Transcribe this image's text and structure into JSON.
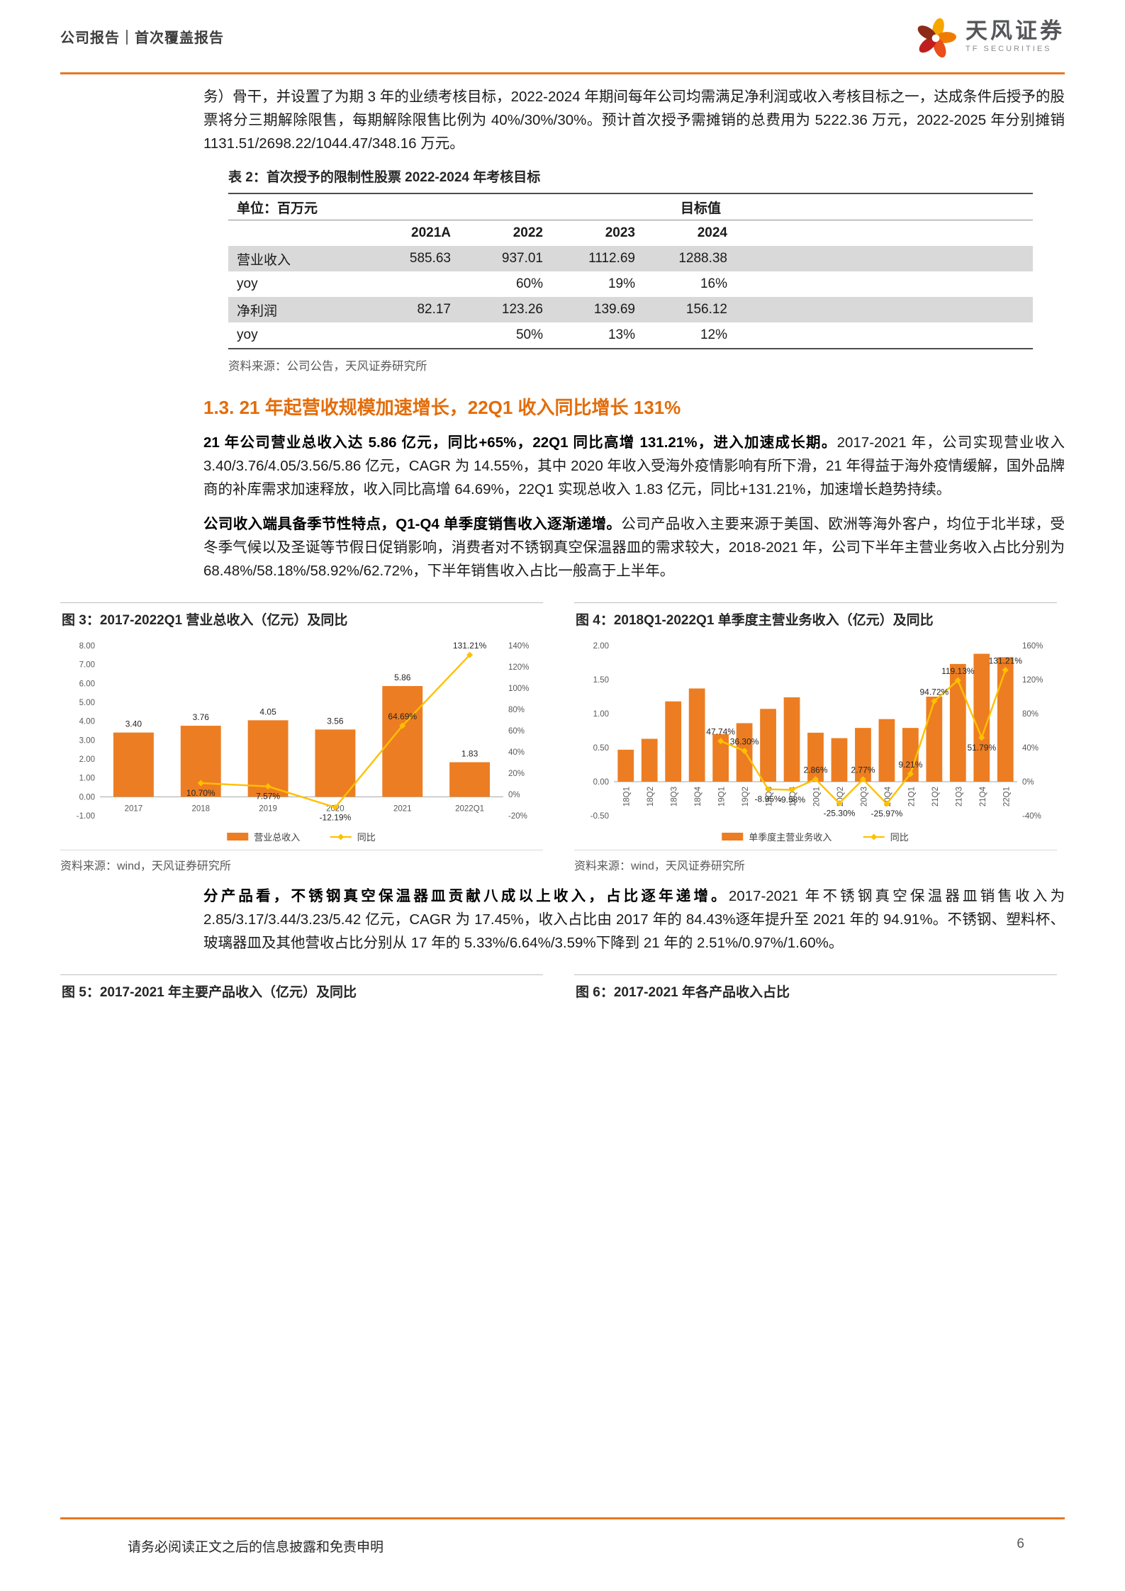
{
  "header": {
    "breadcrumb": "公司报告｜首次覆盖报告",
    "brand_cn": "天风证券",
    "brand_en": "TF SECURITIES"
  },
  "intro": {
    "text": "务）骨干，并设置了为期 3 年的业绩考核目标，2022-2024 年期间每年公司均需满足净利润或收入考核目标之一，达成条件后授予的股票将分三期解除限售，每期解除限售比例为 40%/30%/30%。预计首次授予需摊销的总费用为 5222.36 万元，2022-2025 年分别摊销 1131.51/2698.22/1044.47/348.16 万元。"
  },
  "table2": {
    "title": "表 2：首次授予的限制性股票 2022-2024 年考核目标",
    "unit_label": "单位：百万元",
    "group_header": "目标值",
    "columns": [
      "2021A",
      "2022",
      "2023",
      "2024"
    ],
    "rows": [
      {
        "label": "营业收入",
        "values": [
          "585.63",
          "937.01",
          "1112.69",
          "1288.38"
        ]
      },
      {
        "label": "yoy",
        "values": [
          "",
          "60%",
          "19%",
          "16%"
        ]
      },
      {
        "label": "净利润",
        "values": [
          "82.17",
          "123.26",
          "139.69",
          "156.12"
        ]
      },
      {
        "label": "yoy",
        "values": [
          "",
          "50%",
          "13%",
          "12%"
        ]
      }
    ],
    "source": "资料来源：公司公告，天风证券研究所"
  },
  "section13": {
    "heading": "1.3. 21 年起营收规模加速增长，22Q1 收入同比增长 131%",
    "para1": {
      "lead": "21 年公司营业总收入达 5.86 亿元，同比+65%，22Q1 同比高增 131.21%，进入加速成长期。",
      "body": "2017-2021 年，公司实现营业收入 3.40/3.76/4.05/3.56/5.86 亿元，CAGR 为 14.55%，其中 2020 年收入受海外疫情影响有所下滑，21 年得益于海外疫情缓解，国外品牌商的补库需求加速释放，收入同比高增 64.69%，22Q1 实现总收入 1.83 亿元，同比+131.21%，加速增长趋势持续。"
    },
    "para2": {
      "lead": "公司收入端具备季节性特点，Q1-Q4 单季度销售收入逐渐递增。",
      "body": "公司产品收入主要来源于美国、欧洲等海外客户，均位于北半球，受冬季气候以及圣诞等节假日促销影响，消费者对不锈钢真空保温器皿的需求较大，2018-2021 年，公司下半年主营业务收入占比分别为 68.48%/58.18%/58.92%/62.72%，下半年销售收入占比一般高于上半年。"
    },
    "para3": {
      "lead": "分产品看，不锈钢真空保温器皿贡献八成以上收入，占比逐年递增。",
      "body": "2017-2021 年不锈钢真空保温器皿销售收入为 2.85/3.17/3.44/3.23/5.42 亿元，CAGR 为 17.45%，收入占比由 2017 年的 84.43%逐年提升至 2021 年的 94.91%。不锈钢、塑料杯、玻璃器皿及其他营收占比分别从 17 年的 5.33%/6.64%/3.59%下降到 21 年的 2.51%/0.97%/1.60%。"
    }
  },
  "figures": {
    "fig3": {
      "title": "图 3：2017-2022Q1 营业总收入（亿元）及同比",
      "source": "资料来源：wind，天风证券研究所"
    },
    "fig4": {
      "title": "图 4：2018Q1-2022Q1 单季度主营业务收入（亿元）及同比",
      "source": "资料来源：wind，天风证券研究所"
    },
    "fig5": {
      "title": "图 5：2017-2021 年主要产品收入（亿元）及同比"
    },
    "fig6": {
      "title": "图 6：2017-2021 年各产品收入占比"
    }
  },
  "chart_data": [
    {
      "id": "fig3",
      "type": "bar",
      "subtype": "bar+line-combo",
      "title": "2017-2022Q1 营业总收入（亿元）及同比",
      "categories": [
        "2017",
        "2018",
        "2019",
        "2020",
        "2021",
        "2022Q1"
      ],
      "bar_series": {
        "name": "营业总收入",
        "values": [
          3.4,
          3.76,
          4.05,
          3.56,
          5.86,
          1.83
        ]
      },
      "line_series": {
        "name": "同比",
        "unit": "%",
        "values": [
          null,
          10.7,
          7.57,
          -12.19,
          64.69,
          131.21
        ]
      },
      "bar_labels": [
        "3.40",
        "3.76",
        "4.05",
        "3.56",
        "5.86",
        "1.83"
      ],
      "line_labels": [
        null,
        "10.70%",
        "7.57%",
        "-12.19%",
        "64.69%",
        "131.21%"
      ],
      "line_label_pos": [
        null,
        "below",
        "below",
        "below",
        "above",
        "above"
      ],
      "left_axis": {
        "min": -1,
        "max": 8,
        "ticks": [
          "8.00",
          "7.00",
          "6.00",
          "5.00",
          "4.00",
          "3.00",
          "2.00",
          "1.00",
          "0.00",
          "-1.00"
        ]
      },
      "right_axis": {
        "min": -20,
        "max": 140,
        "ticks": [
          "140%",
          "120%",
          "100%",
          "80%",
          "60%",
          "40%",
          "20%",
          "0%",
          "-20%"
        ]
      },
      "bar_frac": 0.6,
      "rotate_cats": false,
      "legend_position": "bottom",
      "grid": false
    },
    {
      "id": "fig4",
      "type": "bar",
      "subtype": "bar+line-combo",
      "title": "2018Q1-2022Q1 单季度主营业务收入（亿元）及同比",
      "categories": [
        "18Q1",
        "18Q2",
        "18Q3",
        "18Q4",
        "19Q1",
        "19Q2",
        "19Q3",
        "19Q4",
        "20Q1",
        "20Q2",
        "20Q3",
        "20Q4",
        "21Q1",
        "21Q2",
        "21Q3",
        "21Q4",
        "22Q1"
      ],
      "bar_series": {
        "name": "单季度主营业务收入",
        "values": [
          0.47,
          0.63,
          1.18,
          1.37,
          0.7,
          0.86,
          1.07,
          1.24,
          0.72,
          0.64,
          0.79,
          0.92,
          0.79,
          1.25,
          1.73,
          1.88,
          1.83
        ]
      },
      "line_series": {
        "name": "同比",
        "unit": "%",
        "values": [
          null,
          null,
          null,
          null,
          47.74,
          36.3,
          -8.95,
          -9.58,
          2.86,
          -25.3,
          2.77,
          -25.97,
          9.21,
          94.72,
          119.13,
          51.79,
          131.21
        ]
      },
      "bar_labels": null,
      "line_labels": [
        null,
        null,
        null,
        null,
        "47.74%",
        "36.30%",
        "-8.95%",
        "-9.58%",
        "2.86%",
        "-25.30%",
        "2.77%",
        "-25.97%",
        "9.21%",
        "94.72%",
        "119.13%",
        "51.79%",
        "131.21%"
      ],
      "line_label_pos": [
        null,
        null,
        null,
        null,
        "above",
        "above",
        "below",
        "below",
        "above",
        "below",
        "above",
        "below",
        "above",
        "above",
        "above",
        "below",
        "above"
      ],
      "left_axis": {
        "min": -0.5,
        "max": 2,
        "ticks": [
          "2.00",
          "1.50",
          "1.00",
          "0.50",
          "0.00",
          "-0.50"
        ]
      },
      "right_axis": {
        "min": -40,
        "max": 160,
        "ticks": [
          "160%",
          "120%",
          "80%",
          "40%",
          "0%",
          "-40%"
        ]
      },
      "bar_frac": 0.68,
      "rotate_cats": true,
      "legend_position": "bottom",
      "grid": false
    }
  ],
  "footer": {
    "disclaimer": "请务必阅读正文之后的信息披露和免责申明",
    "page_number": "6"
  },
  "colors": {
    "accent": "#E87722",
    "heading": "#E36C09",
    "bar": "#ED7D22",
    "line": "#FFC000",
    "table_shade": "#D9D9D9"
  }
}
